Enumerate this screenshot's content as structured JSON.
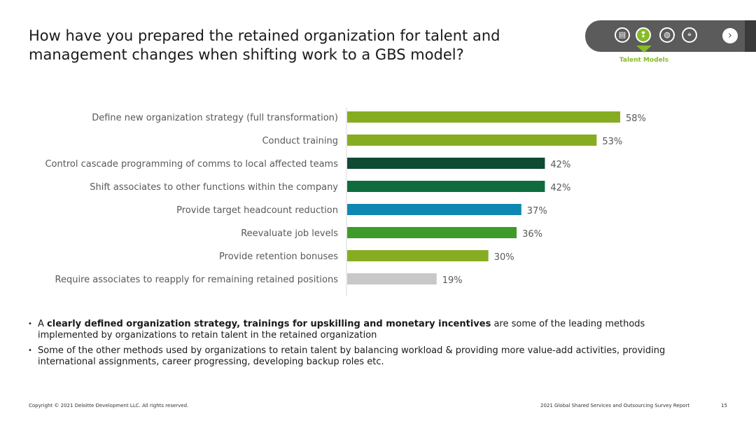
{
  "title": "How have you prepared the retained organization for talent and management changes when shifting work to a GBS model?",
  "nav": {
    "icons": [
      "clipboard-icon",
      "footprints-icon",
      "globe-icon",
      "telescope-icon"
    ],
    "active_index": 1,
    "caption": "Talent Models",
    "arrow": "›"
  },
  "chart_data": {
    "type": "bar",
    "orientation": "horizontal",
    "categories": [
      "Define new organization strategy (full transformation)",
      "Conduct training",
      "Control cascade programming of comms to local affected teams",
      "Shift associates to other functions within the company",
      "Provide target headcount reduction",
      "Reevaluate job levels",
      "Provide retention bonuses",
      "Require associates to reapply for remaining retained positions"
    ],
    "values": [
      58,
      53,
      42,
      42,
      37,
      36,
      30,
      19
    ],
    "value_labels": [
      "58%",
      "53%",
      "42%",
      "42%",
      "37%",
      "36%",
      "30%",
      "19%"
    ],
    "colors": [
      "#86ad22",
      "#86ad22",
      "#0f4a33",
      "#0f6b3d",
      "#0f87b3",
      "#3e9b2a",
      "#86ad22",
      "#c8c8c8"
    ],
    "xlim": [
      0,
      58
    ],
    "grid": false,
    "legend": false
  },
  "bullets": [
    {
      "bold": "clearly defined organization strategy, trainings for upskilling and monetary incentives",
      "prefix": "A ",
      "rest": " are some of the leading methods implemented by organizations to retain talent in the retained organization"
    },
    {
      "bold": "",
      "prefix": "",
      "rest": "Some of the other methods used by organizations to retain talent by balancing workload & providing more value-add activities, providing international assignments, career progressing, developing backup roles etc."
    }
  ],
  "footer": {
    "copyright": "Copyright © 2021 Deloitte Development LLC. All rights reserved.",
    "report": "2021 Global Shared Services and Outsourcing Survey Report",
    "page": "15"
  }
}
